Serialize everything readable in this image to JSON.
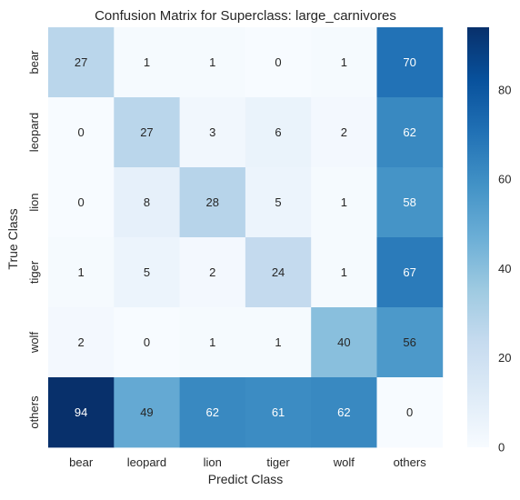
{
  "chart_data": {
    "type": "heatmap",
    "title": "Confusion Matrix for Superclass: large_carnivores",
    "xlabel": "Predict Class",
    "ylabel": "True Class",
    "x_categories": [
      "bear",
      "leopard",
      "lion",
      "tiger",
      "wolf",
      "others"
    ],
    "y_categories": [
      "bear",
      "leopard",
      "lion",
      "tiger",
      "wolf",
      "others"
    ],
    "matrix": [
      [
        27,
        1,
        1,
        0,
        1,
        70
      ],
      [
        0,
        27,
        3,
        6,
        2,
        62
      ],
      [
        0,
        8,
        28,
        5,
        1,
        58
      ],
      [
        1,
        5,
        2,
        24,
        1,
        67
      ],
      [
        2,
        0,
        1,
        1,
        40,
        56
      ],
      [
        94,
        49,
        62,
        61,
        62,
        0
      ]
    ],
    "colorbar": {
      "min": 0,
      "max": 94,
      "ticks": [
        0,
        20,
        40,
        60,
        80
      ]
    },
    "colormap": "Blues",
    "cell_text_dark": "#262626",
    "cell_text_light": "#ffffff"
  }
}
